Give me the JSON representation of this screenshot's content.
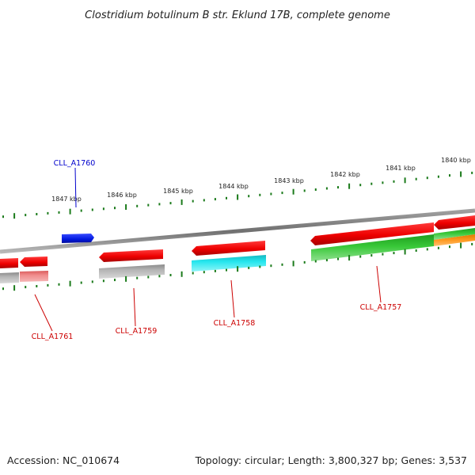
{
  "title": "Clostridium botulinum B str. Eklund 17B, complete genome",
  "footer": {
    "accession": "Accession: NC_010674",
    "summary": "Topology: circular; Length: 3,800,327 bp; Genes: 3,537"
  },
  "ruler": {
    "labels": [
      "1847 kbp",
      "1846 kbp",
      "1845 kbp",
      "1844 kbp",
      "1843 kbp",
      "1842 kbp",
      "1841 kbp",
      "1840 kbp"
    ]
  },
  "genes": [
    {
      "id": "CLL_A1760",
      "label": "CLL_A1760",
      "color": "#0000cc"
    },
    {
      "id": "CLL_A1761",
      "label": "CLL_A1761",
      "color": "#cc0000"
    },
    {
      "id": "CLL_A1759",
      "label": "CLL_A1759",
      "color": "#cc0000"
    },
    {
      "id": "CLL_A1758",
      "label": "CLL_A1758",
      "color": "#cc0000"
    },
    {
      "id": "CLL_A1757",
      "label": "CLL_A1757",
      "color": "#cc0000"
    }
  ],
  "colors": {
    "backbone": "#808080",
    "ticks": "#1a7a1a",
    "cds": "#ee1111",
    "gene_plus": "#0a1adf",
    "rna_gray": "#a8a8a8",
    "pink": "#ee8888",
    "cyan": "#22dddd",
    "green": "#33bb33",
    "orange": "#ff9922"
  }
}
